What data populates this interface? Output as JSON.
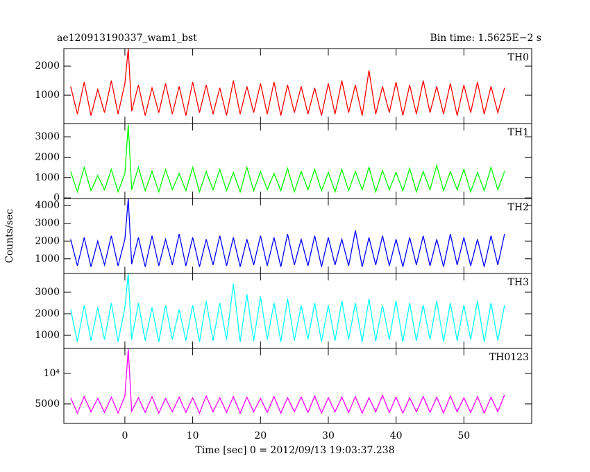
{
  "title": "ae120913190337_wam1_bst",
  "subtitle": "Bin time: 1.5625E−2 s",
  "ylabel": "Counts/sec",
  "xlabel": "Time [sec] 0 = 2012/09/13 19:03:37.238",
  "chart_data": [
    {
      "type": "line",
      "name": "TH0",
      "color": "#ff0000",
      "x": [
        -8,
        -7,
        -6,
        -5,
        -4,
        -3,
        -2,
        -1,
        0,
        0.5,
        1,
        2,
        3,
        4,
        5,
        6,
        7,
        8,
        9,
        10,
        11,
        12,
        13,
        14,
        15,
        16,
        17,
        18,
        19,
        20,
        21,
        22,
        23,
        24,
        25,
        26,
        27,
        28,
        29,
        30,
        31,
        32,
        33,
        34,
        35,
        36,
        37,
        38,
        39,
        40,
        41,
        42,
        43,
        44,
        45,
        46,
        47,
        48,
        49,
        50,
        51,
        52,
        53,
        54,
        55,
        56
      ],
      "values": [
        1300,
        350,
        1450,
        300,
        1200,
        400,
        1500,
        350,
        1400,
        2600,
        450,
        1350,
        300,
        1250,
        400,
        1400,
        350,
        1300,
        300,
        1450,
        400,
        1350,
        350,
        1250,
        300,
        1500,
        350,
        1300,
        400,
        1400,
        350,
        1450,
        300,
        1350,
        400,
        1300,
        350,
        1250,
        300,
        1400,
        350,
        1500,
        400,
        1350,
        300,
        1850,
        350,
        1300,
        400,
        1450,
        300,
        1350,
        350,
        1500,
        400,
        1300,
        350,
        1400,
        300,
        1350,
        400,
        1450,
        350,
        1300,
        400,
        1250
      ],
      "xlim": [
        -9,
        60
      ],
      "xticks": [
        0,
        10,
        20,
        30,
        40,
        50
      ],
      "ylim": [
        25,
        2600
      ],
      "yticks": [
        1000,
        2000
      ]
    },
    {
      "type": "line",
      "name": "TH1",
      "color": "#00ff00",
      "x": [
        -8,
        -7,
        -6,
        -5,
        -4,
        -3,
        -2,
        -1,
        0,
        0.5,
        1,
        2,
        3,
        4,
        5,
        6,
        7,
        8,
        9,
        10,
        11,
        12,
        13,
        14,
        15,
        16,
        17,
        18,
        19,
        20,
        21,
        22,
        23,
        24,
        25,
        26,
        27,
        28,
        29,
        30,
        31,
        32,
        33,
        34,
        35,
        36,
        37,
        38,
        39,
        40,
        41,
        42,
        43,
        44,
        45,
        46,
        47,
        48,
        49,
        50,
        51,
        52,
        53,
        54,
        55,
        56
      ],
      "values": [
        1300,
        300,
        1500,
        350,
        1100,
        400,
        1400,
        300,
        1200,
        3600,
        400,
        1500,
        350,
        1300,
        300,
        1400,
        400,
        1200,
        350,
        1500,
        300,
        1300,
        400,
        1400,
        350,
        1250,
        300,
        1500,
        350,
        1300,
        400,
        1200,
        350,
        1450,
        300,
        1300,
        400,
        1400,
        350,
        1250,
        300,
        1400,
        350,
        1300,
        400,
        1500,
        300,
        1350,
        400,
        1250,
        350,
        1450,
        300,
        1300,
        400,
        1600,
        350,
        1300,
        400,
        1400,
        300,
        1250,
        350,
        1500,
        400,
        1300
      ],
      "xlim": [
        -9,
        60
      ],
      "xticks": [
        0,
        10,
        20,
        30,
        40,
        50
      ],
      "ylim": [
        -30,
        3650
      ],
      "yticks": [
        0,
        1000,
        2000,
        3000
      ]
    },
    {
      "type": "line",
      "name": "TH2",
      "color": "#0000ff",
      "x": [
        -8,
        -7,
        -6,
        -5,
        -4,
        -3,
        -2,
        -1,
        0,
        0.5,
        1,
        2,
        3,
        4,
        5,
        6,
        7,
        8,
        9,
        10,
        11,
        12,
        13,
        14,
        15,
        16,
        17,
        18,
        19,
        20,
        21,
        22,
        23,
        24,
        25,
        26,
        27,
        28,
        29,
        30,
        31,
        32,
        33,
        34,
        35,
        36,
        37,
        38,
        39,
        40,
        41,
        42,
        43,
        44,
        45,
        46,
        47,
        48,
        49,
        50,
        51,
        52,
        53,
        54,
        55,
        56
      ],
      "values": [
        2100,
        600,
        2200,
        550,
        2000,
        650,
        2300,
        600,
        2100,
        4400,
        700,
        2200,
        550,
        2300,
        600,
        2100,
        650,
        2400,
        600,
        2200,
        550,
        2100,
        650,
        2300,
        600,
        2200,
        550,
        2100,
        650,
        2300,
        600,
        2200,
        550,
        2400,
        650,
        2100,
        600,
        2300,
        550,
        2200,
        650,
        2100,
        600,
        2600,
        550,
        2200,
        650,
        2300,
        600,
        2100,
        550,
        2200,
        650,
        2300,
        600,
        2100,
        550,
        2400,
        650,
        2200,
        600,
        2100,
        550,
        2300,
        650,
        2400
      ],
      "xlim": [
        -9,
        60
      ],
      "xticks": [
        0,
        10,
        20,
        30,
        40,
        50
      ],
      "ylim": [
        170,
        4400
      ],
      "yticks": [
        1000,
        2000,
        3000,
        4000
      ]
    },
    {
      "type": "line",
      "name": "TH3",
      "color": "#00ffff",
      "x": [
        -8,
        -7,
        -6,
        -5,
        -4,
        -3,
        -2,
        -1,
        0,
        0.5,
        1,
        2,
        3,
        4,
        5,
        6,
        7,
        8,
        9,
        10,
        11,
        12,
        13,
        14,
        15,
        16,
        17,
        18,
        19,
        20,
        21,
        22,
        23,
        24,
        25,
        26,
        27,
        28,
        29,
        30,
        31,
        32,
        33,
        34,
        35,
        36,
        37,
        38,
        39,
        40,
        41,
        42,
        43,
        44,
        45,
        46,
        47,
        48,
        49,
        50,
        51,
        52,
        53,
        54,
        55,
        56
      ],
      "values": [
        2200,
        700,
        2400,
        750,
        2300,
        800,
        2500,
        700,
        2300,
        3870,
        800,
        2500,
        750,
        2300,
        700,
        2400,
        800,
        2200,
        750,
        2400,
        700,
        2600,
        750,
        2500,
        800,
        3400,
        700,
        2900,
        750,
        2800,
        800,
        2500,
        700,
        2700,
        750,
        2400,
        800,
        2500,
        700,
        2400,
        750,
        2600,
        800,
        2500,
        700,
        2700,
        750,
        2400,
        800,
        2600,
        700,
        2500,
        750,
        2400,
        800,
        2600,
        700,
        2500,
        750,
        2400,
        800,
        2600,
        700,
        2500,
        750,
        2400
      ],
      "xlim": [
        -9,
        60
      ],
      "xticks": [
        0,
        10,
        20,
        30,
        40,
        50
      ],
      "ylim": [
        390,
        3870
      ],
      "yticks": [
        1000,
        2000,
        3000
      ]
    },
    {
      "type": "line",
      "name": "TH0123",
      "color": "#ff00ff",
      "x": [
        -8,
        -7,
        -6,
        -5,
        -4,
        -3,
        -2,
        -1,
        0,
        0.5,
        1,
        2,
        3,
        4,
        5,
        6,
        7,
        8,
        9,
        10,
        11,
        12,
        13,
        14,
        15,
        16,
        17,
        18,
        19,
        20,
        21,
        22,
        23,
        24,
        25,
        26,
        27,
        28,
        29,
        30,
        31,
        32,
        33,
        34,
        35,
        36,
        37,
        38,
        39,
        40,
        41,
        42,
        43,
        44,
        45,
        46,
        47,
        48,
        49,
        50,
        51,
        52,
        53,
        54,
        55,
        56
      ],
      "values": [
        6000,
        3500,
        6200,
        3700,
        5900,
        3600,
        6100,
        3500,
        6300,
        14000,
        3800,
        6000,
        3600,
        6200,
        3500,
        5900,
        3700,
        6100,
        3600,
        6000,
        3500,
        6300,
        3700,
        6000,
        3600,
        6200,
        3500,
        6100,
        3700,
        5900,
        3600,
        6200,
        3500,
        6000,
        3700,
        6100,
        3600,
        6300,
        3500,
        6000,
        3700,
        6100,
        3600,
        6200,
        3500,
        6000,
        3700,
        6400,
        3600,
        6100,
        3500,
        6000,
        3700,
        6200,
        3600,
        6100,
        3500,
        6300,
        3700,
        6000,
        3600,
        6200,
        3500,
        6100,
        3700,
        6500
      ],
      "xlim": [
        -9,
        60
      ],
      "xticks": [
        0,
        10,
        20,
        30,
        40,
        50
      ],
      "ylim": [
        1800,
        14100
      ],
      "yticks": [
        5000,
        {
          "value": 10000,
          "label": "10⁴"
        }
      ]
    }
  ]
}
